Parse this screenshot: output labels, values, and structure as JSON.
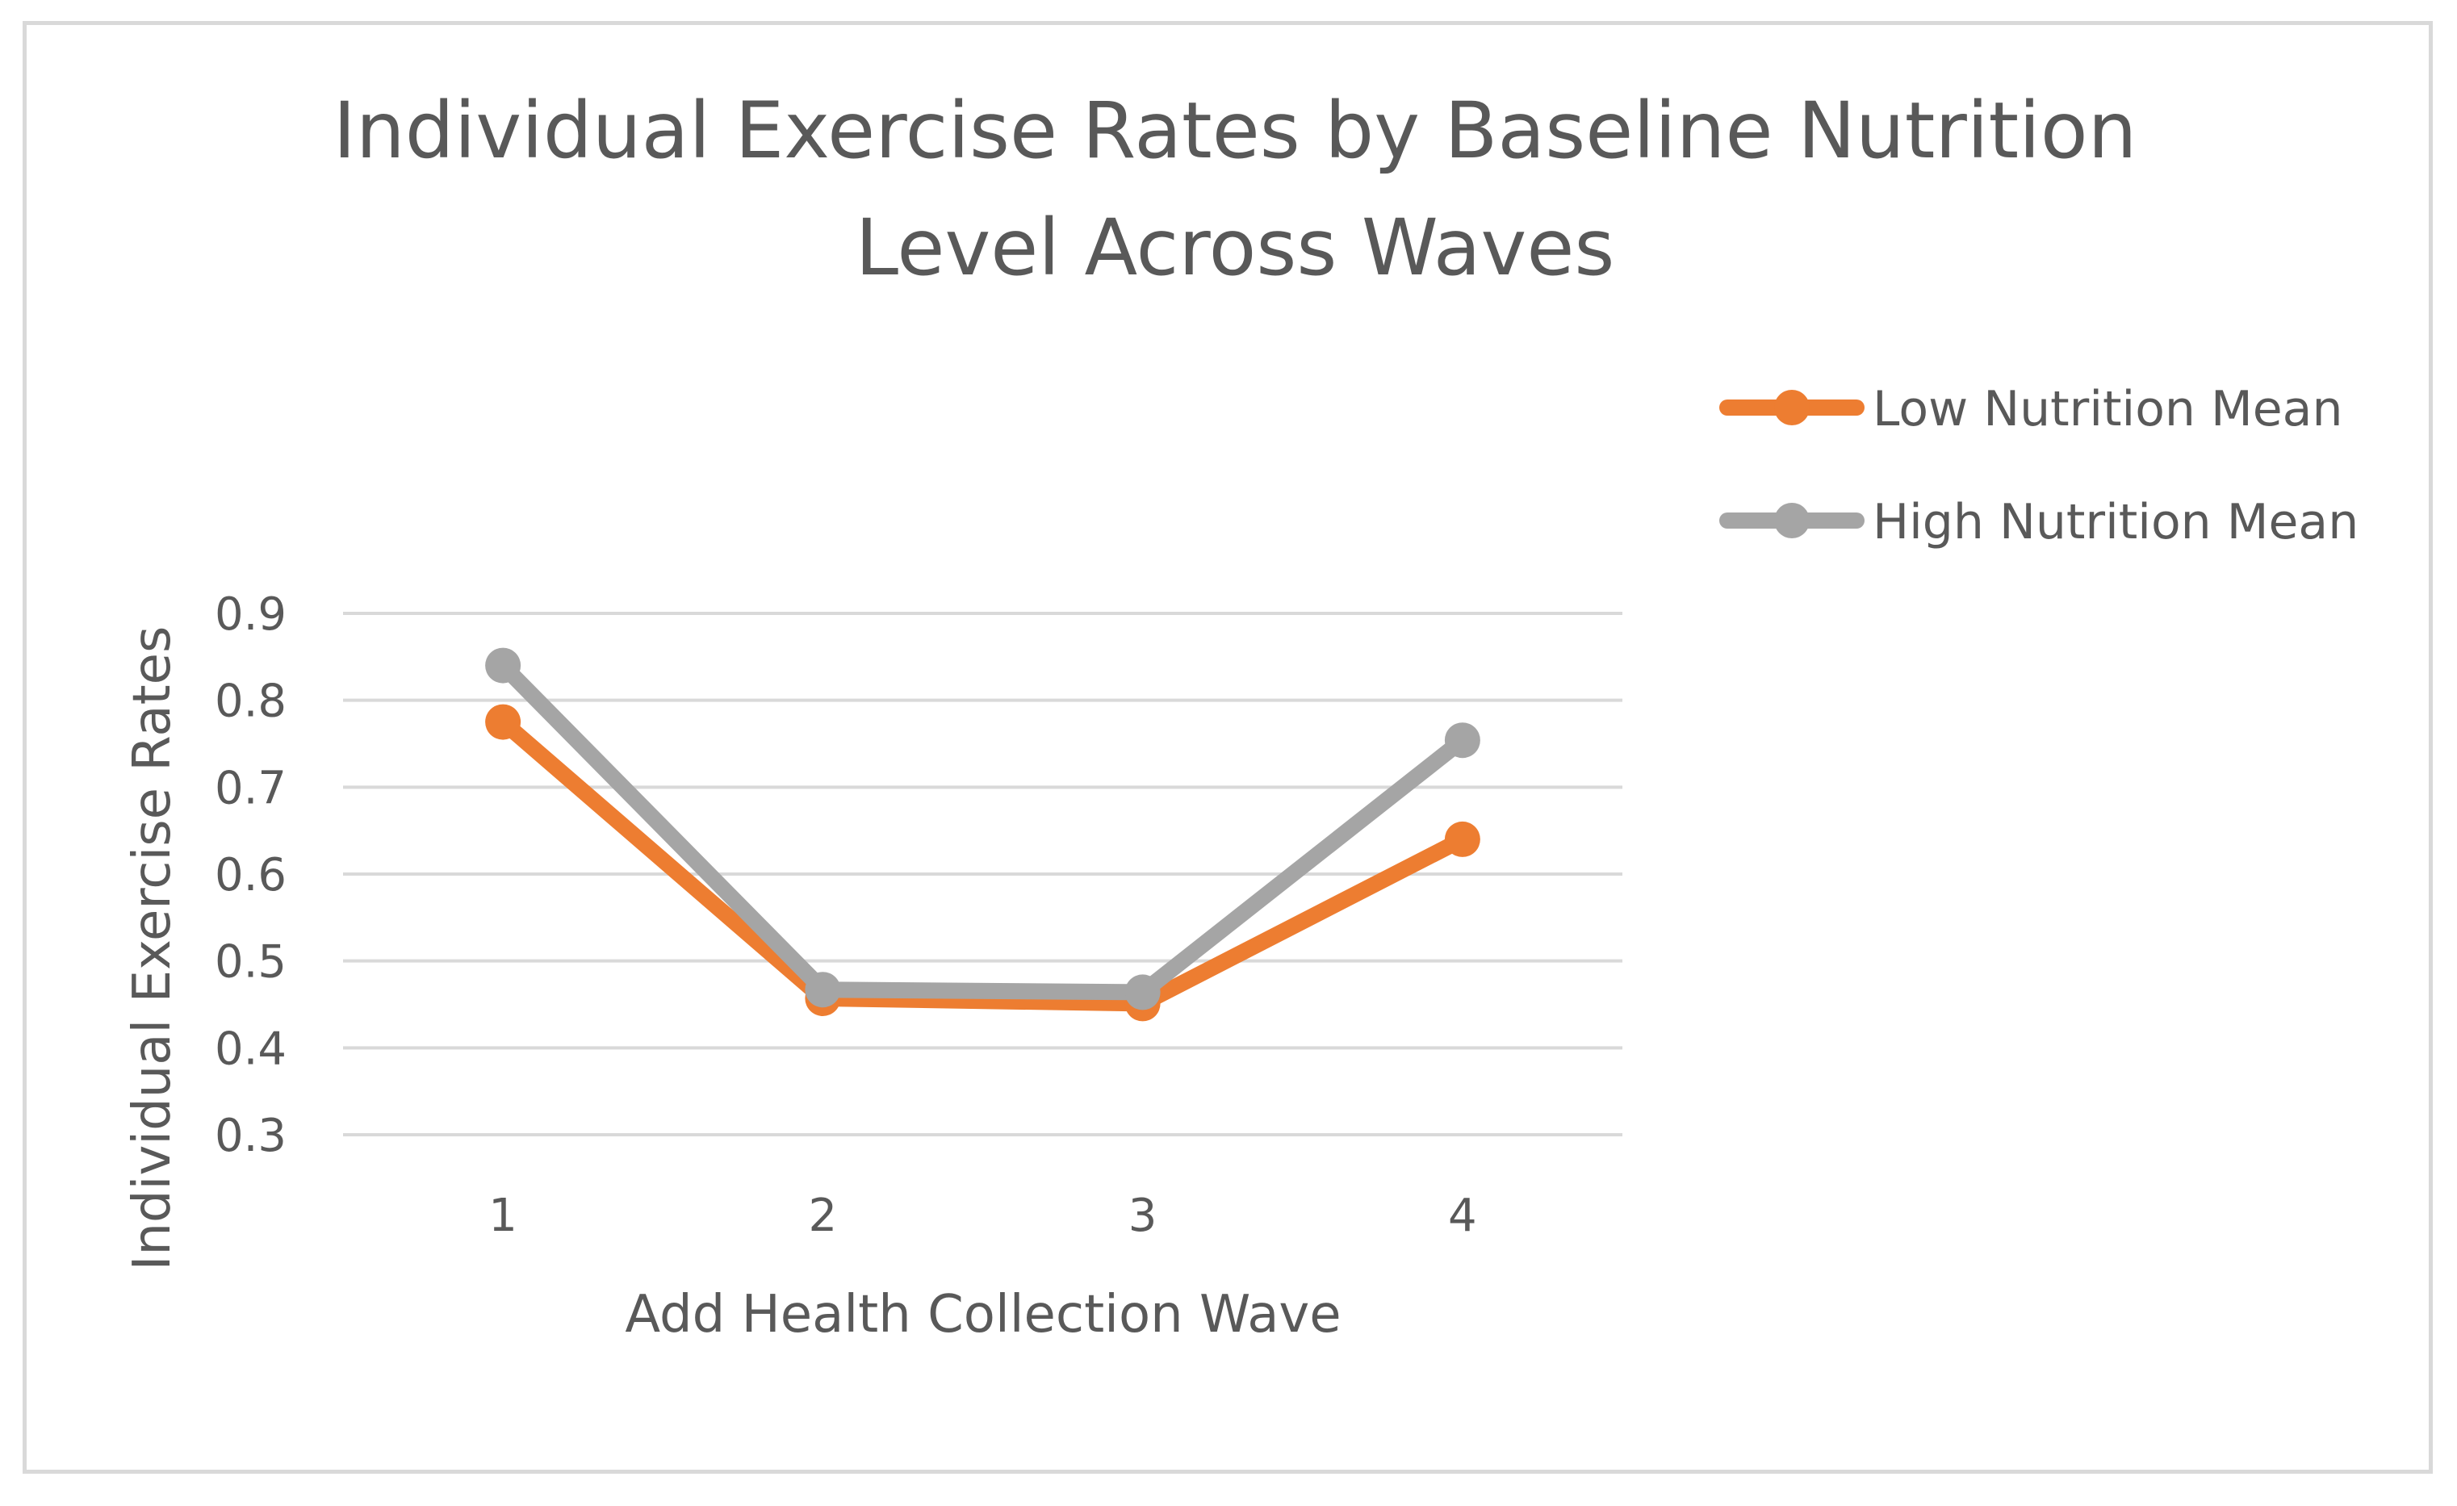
{
  "chart_data": {
    "type": "line",
    "title_lines": [
      "Individual Exercise Rates by Baseline Nutrition",
      "Level Across Waves"
    ],
    "xlabel": "Add Health Collection Wave",
    "ylabel": "Individual Exercise Rates",
    "categories": [
      "1",
      "2",
      "3",
      "4"
    ],
    "ylim": [
      0.3,
      0.9
    ],
    "yticks": [
      0.3,
      0.4,
      0.5,
      0.6,
      0.7,
      0.8,
      0.9
    ],
    "ytick_labels": [
      "0.3",
      "0.4",
      "0.5",
      "0.6",
      "0.7",
      "0.8",
      "0.9"
    ],
    "grid": true,
    "legend_position": "top-right",
    "series": [
      {
        "name": "Low Nutrition Mean",
        "color": "#ED7D31",
        "values": [
          0.775,
          0.457,
          0.451,
          0.64
        ]
      },
      {
        "name": "High Nutrition Mean",
        "color": "#A5A5A5",
        "values": [
          0.84,
          0.467,
          0.464,
          0.754
        ]
      }
    ]
  }
}
